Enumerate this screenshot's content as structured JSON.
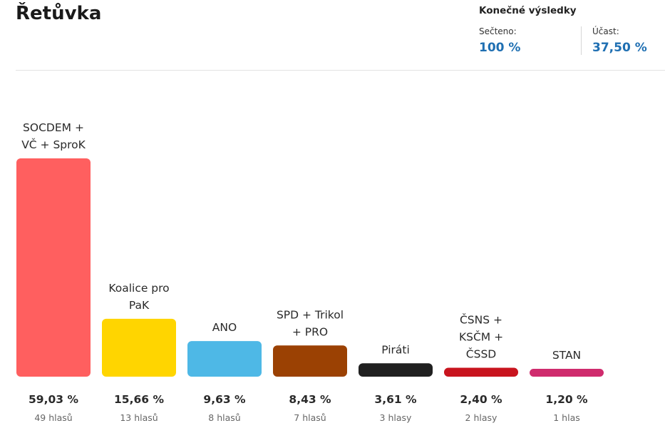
{
  "page": {
    "title": "Řetůvka",
    "results_heading": "Konečné výsledky",
    "counted_label": "Sečteno:",
    "counted_value": "100 %",
    "turnout_label": "Účast:",
    "turnout_value": "37,50 %"
  },
  "chart_data": {
    "type": "bar",
    "categories": [
      [
        "SOCDEM +",
        "VČ + SproK"
      ],
      [
        "Koalice pro",
        "PaK"
      ],
      [
        "ANO"
      ],
      [
        "SPD + Trikol",
        "+ PRO"
      ],
      [
        "Piráti"
      ],
      [
        "ČSNS +",
        "KSČM +",
        "ČSSD"
      ],
      [
        "STAN"
      ]
    ],
    "values": [
      59.03,
      15.66,
      9.63,
      8.43,
      3.61,
      2.4,
      1.2
    ],
    "value_labels": [
      "59,03 %",
      "15,66 %",
      "9,63 %",
      "8,43 %",
      "3,61 %",
      "2,40 %",
      "1,20 %"
    ],
    "vote_labels": [
      "49 hlasů",
      "13 hlasů",
      "8 hlasů",
      "7 hlasů",
      "3 hlasy",
      "2 hlasy",
      "1 hlas"
    ],
    "colors": [
      "#ff5f5f",
      "#ffd500",
      "#4eb8e6",
      "#9b4103",
      "#202020",
      "#c8141e",
      "#cf2b6d"
    ],
    "ylim": [
      0,
      59.03
    ],
    "grid": false,
    "legend": "none"
  }
}
